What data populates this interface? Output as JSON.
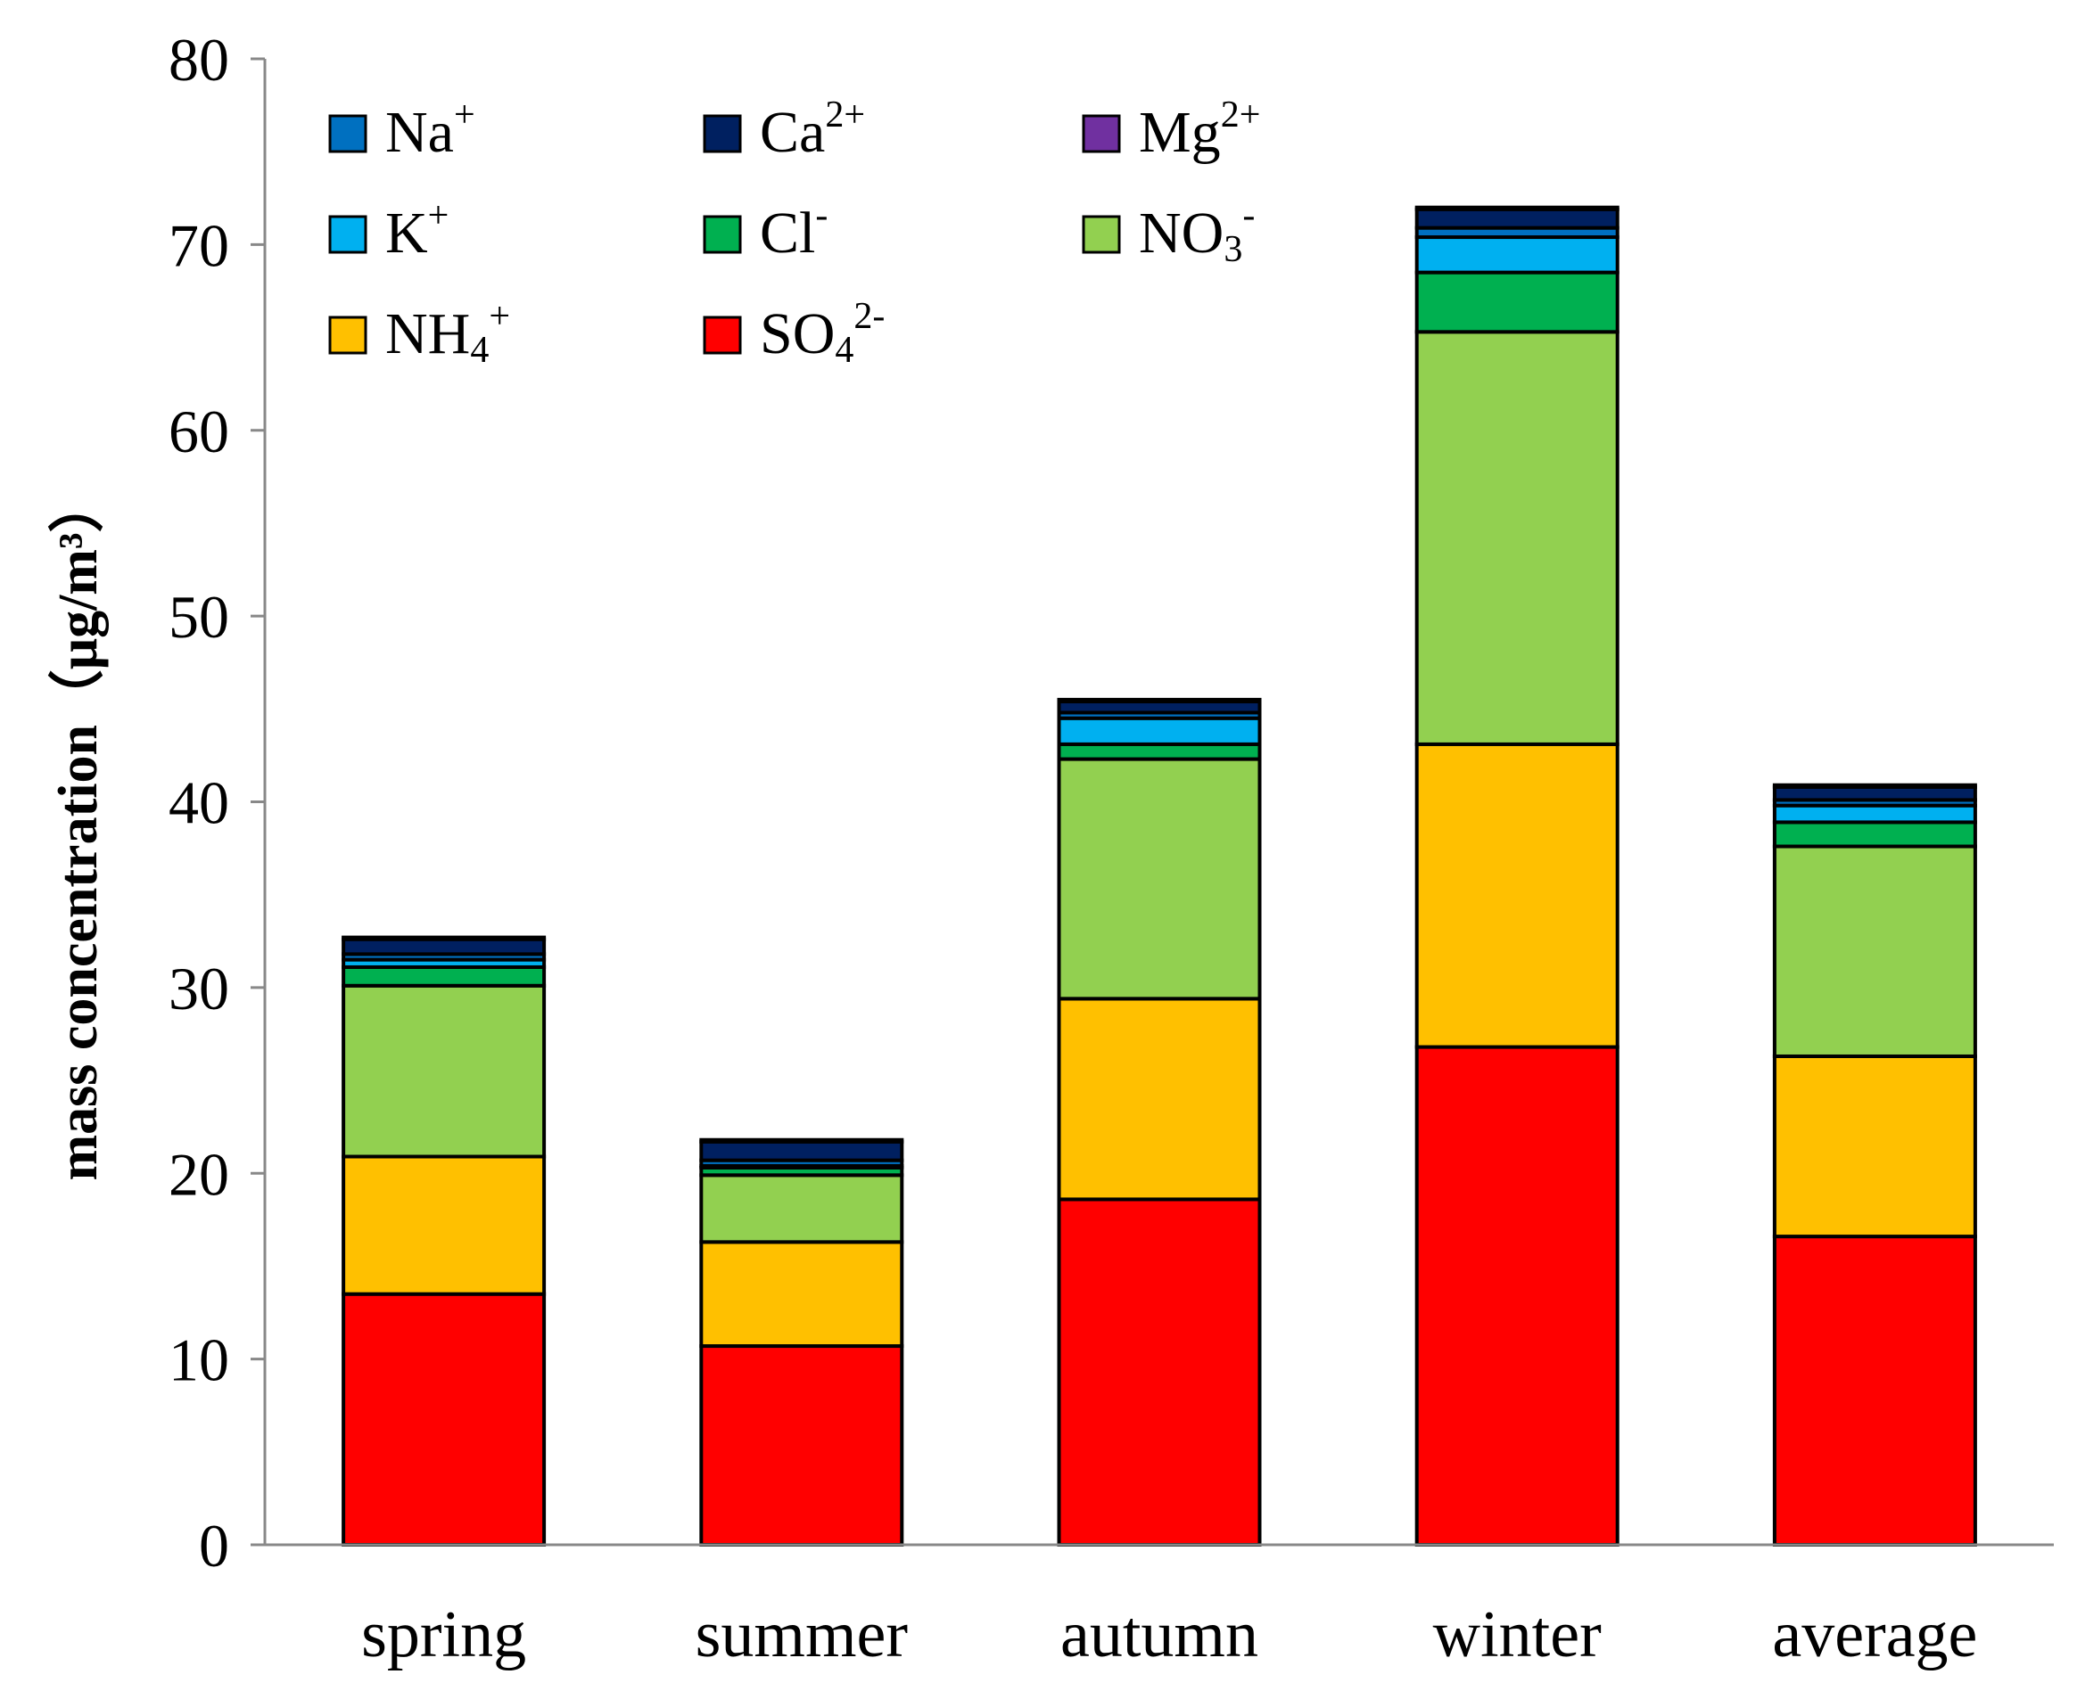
{
  "chart_data": {
    "type": "bar",
    "stacked": true,
    "title": "",
    "xlabel": "",
    "ylabel": "mass concentration（μg/m³）",
    "ylim": [
      0,
      80
    ],
    "yticks": [
      "0",
      "10",
      "20",
      "30",
      "40",
      "50",
      "60",
      "70",
      "80"
    ],
    "categories": [
      "spring",
      "summer",
      "autumn",
      "winter",
      "average"
    ],
    "legend_position": "top-left",
    "series": [
      {
        "key": "so4",
        "name": "SO4 2-",
        "base": "SO",
        "sub": "4",
        "sup": "2-",
        "color": "#ff0000",
        "values": [
          13.5,
          10.7,
          18.6,
          26.8,
          16.6
        ]
      },
      {
        "key": "nh4",
        "name": "NH4 +",
        "base": "NH",
        "sub": "4",
        "sup": "+",
        "color": "#ffc000",
        "values": [
          7.4,
          5.6,
          10.8,
          16.3,
          9.7
        ]
      },
      {
        "key": "no3",
        "name": "NO3 -",
        "base": "NO",
        "sub": "3",
        "sup": "-",
        "color": "#92d050",
        "values": [
          9.2,
          3.6,
          12.9,
          22.2,
          11.3
        ]
      },
      {
        "key": "cl",
        "name": "Cl -",
        "base": "Cl",
        "sub": "",
        "sup": "-",
        "color": "#00b050",
        "values": [
          1.0,
          0.4,
          0.8,
          3.2,
          1.3
        ]
      },
      {
        "key": "k",
        "name": "K +",
        "base": "K",
        "sub": "",
        "sup": "+",
        "color": "#00b0f0",
        "values": [
          0.4,
          0.1,
          1.4,
          1.9,
          0.9
        ]
      },
      {
        "key": "na",
        "name": "Na +",
        "base": "Na",
        "sub": "",
        "sup": "+",
        "color": "#0070c0",
        "values": [
          0.3,
          0.3,
          0.3,
          0.5,
          0.3
        ]
      },
      {
        "key": "ca",
        "name": "Ca 2+",
        "base": "Ca",
        "sub": "",
        "sup": "2+",
        "color": "#002060",
        "values": [
          0.8,
          1.0,
          0.6,
          1.0,
          0.7
        ]
      },
      {
        "key": "mg",
        "name": "Mg 2+",
        "base": "Mg",
        "sub": "",
        "sup": "2+",
        "color": "#7030a0",
        "values": [
          0.1,
          0.1,
          0.1,
          0.1,
          0.1
        ]
      }
    ],
    "legend_order": [
      "na",
      "ca",
      "mg",
      "k",
      "cl",
      "no3",
      "nh4",
      "so4"
    ]
  }
}
